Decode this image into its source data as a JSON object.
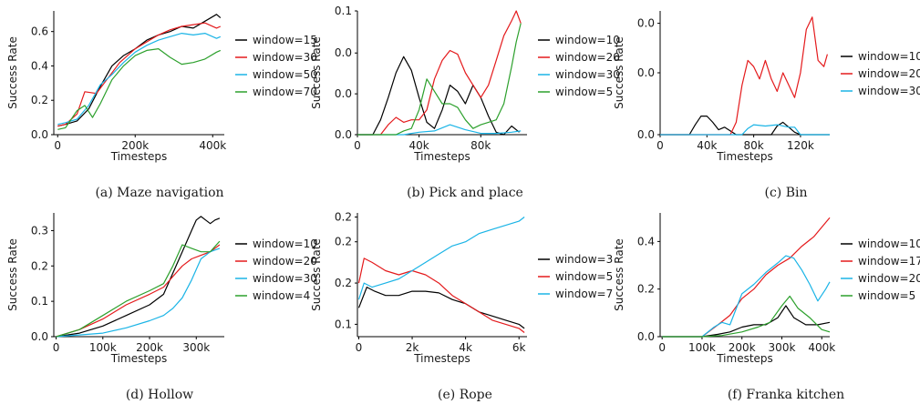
{
  "chart_data": [
    {
      "type": "line",
      "caption": "(a) Maze navigation",
      "xlabel": "Timesteps",
      "ylabel": "Success Rate",
      "xlim": [
        -10000,
        430000
      ],
      "ylim": [
        0,
        0.72
      ],
      "xticks": [
        0,
        200000,
        400000
      ],
      "xtick_labels": [
        "0",
        "200k",
        "400k"
      ],
      "yticks": [
        0,
        0.2,
        0.4,
        0.6
      ],
      "ytick_labels": [
        "0.0",
        "0.2",
        "0.4",
        "0.6"
      ],
      "legend_position": "right",
      "series": [
        {
          "name": "window=15",
          "color": "#000000",
          "x": [
            0,
            20000,
            50000,
            80000,
            110000,
            140000,
            170000,
            200000,
            230000,
            260000,
            290000,
            320000,
            350000,
            380000,
            410000,
            420000
          ],
          "y": [
            0.05,
            0.06,
            0.08,
            0.15,
            0.28,
            0.4,
            0.46,
            0.5,
            0.55,
            0.58,
            0.6,
            0.63,
            0.62,
            0.66,
            0.7,
            0.68
          ]
        },
        {
          "name": "window=30",
          "color": "#e41a1c",
          "x": [
            0,
            20000,
            50000,
            70000,
            100000,
            130000,
            160000,
            200000,
            230000,
            260000,
            290000,
            320000,
            350000,
            380000,
            410000,
            420000
          ],
          "y": [
            0.05,
            0.06,
            0.12,
            0.25,
            0.24,
            0.33,
            0.42,
            0.5,
            0.54,
            0.58,
            0.61,
            0.63,
            0.64,
            0.65,
            0.62,
            0.63
          ]
        },
        {
          "name": "window=50",
          "color": "#1ab4e6",
          "x": [
            0,
            20000,
            50000,
            80000,
            110000,
            140000,
            170000,
            200000,
            230000,
            260000,
            290000,
            320000,
            350000,
            380000,
            410000,
            420000
          ],
          "y": [
            0.06,
            0.07,
            0.09,
            0.17,
            0.29,
            0.35,
            0.42,
            0.48,
            0.52,
            0.55,
            0.57,
            0.59,
            0.58,
            0.59,
            0.56,
            0.57
          ]
        },
        {
          "name": "window=70",
          "color": "#2ca02c",
          "x": [
            0,
            20000,
            50000,
            70000,
            90000,
            110000,
            140000,
            170000,
            200000,
            230000,
            260000,
            290000,
            320000,
            350000,
            380000,
            410000,
            420000
          ],
          "y": [
            0.03,
            0.04,
            0.14,
            0.17,
            0.1,
            0.18,
            0.32,
            0.4,
            0.46,
            0.49,
            0.5,
            0.45,
            0.41,
            0.42,
            0.44,
            0.48,
            0.49
          ]
        }
      ]
    },
    {
      "type": "line",
      "caption": "(b) Pick and place",
      "xlabel": "Timesteps",
      "ylabel": "Success Rate",
      "xlim": [
        0,
        110000
      ],
      "ylim": [
        0,
        0.1
      ],
      "xticks": [
        0,
        40000,
        80000
      ],
      "xtick_labels": [
        "0",
        "40k",
        "80k"
      ],
      "yticks": [
        0,
        0.033,
        0.066,
        0.1
      ],
      "ytick_labels": [
        "0.0",
        "0.0",
        "0.0",
        "0.1"
      ],
      "legend_position": "right",
      "series": [
        {
          "name": "window=10",
          "color": "#000000",
          "x": [
            0,
            10000,
            15000,
            20000,
            25000,
            30000,
            35000,
            40000,
            45000,
            50000,
            55000,
            60000,
            65000,
            70000,
            75000,
            80000,
            85000,
            90000,
            95000,
            100000,
            105000
          ],
          "y": [
            0,
            0.0,
            0.012,
            0.03,
            0.05,
            0.063,
            0.052,
            0.03,
            0.01,
            0.005,
            0.02,
            0.04,
            0.035,
            0.025,
            0.04,
            0.03,
            0.015,
            0.002,
            0,
            0.007,
            0.002
          ]
        },
        {
          "name": "window=20",
          "color": "#e41a1c",
          "x": [
            0,
            15000,
            20000,
            25000,
            30000,
            35000,
            40000,
            45000,
            50000,
            55000,
            60000,
            65000,
            70000,
            75000,
            80000,
            85000,
            90000,
            95000,
            100000,
            103000,
            106000
          ],
          "y": [
            0,
            0,
            0.008,
            0.014,
            0.01,
            0.012,
            0.012,
            0.02,
            0.045,
            0.06,
            0.068,
            0.065,
            0.05,
            0.04,
            0.03,
            0.04,
            0.06,
            0.08,
            0.092,
            0.1,
            0.09
          ]
        },
        {
          "name": "window=30",
          "color": "#1ab4e6",
          "x": [
            0,
            30000,
            40000,
            50000,
            60000,
            70000,
            80000,
            90000,
            100000,
            106000
          ],
          "y": [
            0,
            0,
            0.002,
            0.003,
            0.008,
            0.004,
            0.001,
            0.001,
            0.002,
            0.003
          ]
        },
        {
          "name": "window=5",
          "color": "#2ca02c",
          "x": [
            0,
            25000,
            30000,
            35000,
            40000,
            45000,
            50000,
            55000,
            60000,
            65000,
            70000,
            75000,
            80000,
            85000,
            90000,
            95000,
            100000,
            103000,
            106000
          ],
          "y": [
            0,
            0,
            0.003,
            0.005,
            0.02,
            0.045,
            0.035,
            0.025,
            0.025,
            0.022,
            0.012,
            0.005,
            0.008,
            0.01,
            0.012,
            0.025,
            0.055,
            0.075,
            0.09
          ]
        }
      ]
    },
    {
      "type": "line",
      "caption": "(c) Bin",
      "xlabel": "Timesteps",
      "ylabel": "Success Rate",
      "xlim": [
        0,
        145000
      ],
      "ylim": [
        0,
        0.1
      ],
      "xticks": [
        0,
        40000,
        80000,
        120000
      ],
      "xtick_labels": [
        "0",
        "40k",
        "80k",
        "120k"
      ],
      "yticks": [
        0,
        0.05,
        0.09
      ],
      "ytick_labels": [
        "0.0",
        "0.0",
        "0.0"
      ],
      "legend_position": "right",
      "series": [
        {
          "name": "window=10",
          "color": "#000000",
          "x": [
            0,
            25000,
            30000,
            35000,
            40000,
            45000,
            50000,
            55000,
            60000,
            65000,
            95000,
            100000,
            105000,
            110000,
            115000,
            120000,
            145000
          ],
          "y": [
            0,
            0,
            0.008,
            0.015,
            0.015,
            0.01,
            0.004,
            0.006,
            0.003,
            0,
            0,
            0.007,
            0.01,
            0.006,
            0.002,
            0,
            0
          ]
        },
        {
          "name": "window=20",
          "color": "#e41a1c",
          "x": [
            0,
            60000,
            65000,
            70000,
            75000,
            80000,
            85000,
            90000,
            95000,
            100000,
            105000,
            110000,
            115000,
            120000,
            125000,
            130000,
            135000,
            140000,
            143000
          ],
          "y": [
            0,
            0,
            0.01,
            0.04,
            0.06,
            0.055,
            0.045,
            0.06,
            0.045,
            0.035,
            0.05,
            0.04,
            0.03,
            0.05,
            0.085,
            0.095,
            0.06,
            0.055,
            0.065
          ]
        },
        {
          "name": "window=30",
          "color": "#1ab4e6",
          "x": [
            0,
            70000,
            75000,
            80000,
            90000,
            100000,
            110000,
            115000,
            120000,
            145000
          ],
          "y": [
            0,
            0,
            0.005,
            0.008,
            0.007,
            0.008,
            0.006,
            0.006,
            0,
            0
          ]
        }
      ]
    },
    {
      "type": "line",
      "caption": "(d) Hollow",
      "xlabel": "Timesteps",
      "ylabel": "Success Rate",
      "xlim": [
        -5000,
        360000
      ],
      "ylim": [
        0,
        0.35
      ],
      "xticks": [
        0,
        100000,
        200000,
        300000
      ],
      "xtick_labels": [
        "0",
        "100k",
        "200k",
        "300k"
      ],
      "yticks": [
        0,
        0.1,
        0.2,
        0.3
      ],
      "ytick_labels": [
        "0.0",
        "0.1",
        "0.2",
        "0.3"
      ],
      "legend_position": "right",
      "series": [
        {
          "name": "window=10",
          "color": "#000000",
          "x": [
            0,
            50000,
            100000,
            150000,
            200000,
            230000,
            250000,
            270000,
            290000,
            300000,
            310000,
            320000,
            330000,
            340000,
            350000
          ],
          "y": [
            0,
            0.01,
            0.03,
            0.06,
            0.09,
            0.12,
            0.18,
            0.24,
            0.3,
            0.33,
            0.34,
            0.33,
            0.32,
            0.33,
            0.335
          ]
        },
        {
          "name": "window=20",
          "color": "#e41a1c",
          "x": [
            0,
            50000,
            100000,
            150000,
            200000,
            230000,
            250000,
            270000,
            290000,
            310000,
            330000,
            350000
          ],
          "y": [
            0,
            0.02,
            0.05,
            0.09,
            0.12,
            0.14,
            0.17,
            0.2,
            0.22,
            0.23,
            0.24,
            0.26
          ]
        },
        {
          "name": "window=30",
          "color": "#1ab4e6",
          "x": [
            0,
            50000,
            100000,
            150000,
            200000,
            230000,
            250000,
            270000,
            290000,
            310000,
            330000,
            350000
          ],
          "y": [
            0,
            0.005,
            0.01,
            0.025,
            0.045,
            0.06,
            0.08,
            0.11,
            0.16,
            0.22,
            0.24,
            0.25
          ]
        },
        {
          "name": "window=4",
          "color": "#2ca02c",
          "x": [
            0,
            50000,
            100000,
            150000,
            200000,
            230000,
            250000,
            270000,
            290000,
            310000,
            330000,
            350000
          ],
          "y": [
            0,
            0.02,
            0.06,
            0.1,
            0.13,
            0.15,
            0.2,
            0.26,
            0.25,
            0.24,
            0.24,
            0.27
          ]
        }
      ]
    },
    {
      "type": "line",
      "caption": "(e) Rope",
      "xlabel": "Timesteps",
      "ylabel": "Success Rate",
      "xlim": [
        -50,
        6300
      ],
      "ylim": [
        0.085,
        0.235
      ],
      "xticks": [
        0,
        2000,
        4000,
        6000
      ],
      "xtick_labels": [
        "0",
        "2k",
        "4k",
        "6k"
      ],
      "yticks": [
        0.1,
        0.15,
        0.2,
        0.23
      ],
      "ytick_labels": [
        "0.1",
        "0.2",
        "0.2",
        "0.2"
      ],
      "legend_position": "right",
      "series": [
        {
          "name": "window=3",
          "color": "#000000",
          "x": [
            0,
            300,
            600,
            1000,
            1500,
            2000,
            2500,
            3000,
            3500,
            4000,
            4500,
            5000,
            5500,
            6000,
            6200
          ],
          "y": [
            0.12,
            0.145,
            0.14,
            0.135,
            0.135,
            0.14,
            0.14,
            0.138,
            0.13,
            0.125,
            0.115,
            0.11,
            0.105,
            0.1,
            0.095
          ]
        },
        {
          "name": "window=5",
          "color": "#e41a1c",
          "x": [
            0,
            200,
            500,
            1000,
            1500,
            2000,
            2500,
            3000,
            3500,
            4000,
            4500,
            5000,
            5500,
            6000,
            6200
          ],
          "y": [
            0.15,
            0.18,
            0.175,
            0.165,
            0.16,
            0.165,
            0.16,
            0.15,
            0.135,
            0.125,
            0.115,
            0.105,
            0.1,
            0.095,
            0.09
          ]
        },
        {
          "name": "window=7",
          "color": "#1ab4e6",
          "x": [
            0,
            200,
            500,
            1000,
            1500,
            2000,
            2500,
            3000,
            3500,
            4000,
            4500,
            5000,
            5500,
            6000,
            6200
          ],
          "y": [
            0.13,
            0.15,
            0.145,
            0.15,
            0.155,
            0.165,
            0.175,
            0.185,
            0.195,
            0.2,
            0.21,
            0.215,
            0.22,
            0.225,
            0.23
          ]
        }
      ]
    },
    {
      "type": "line",
      "caption": "(f) Franka kitchen",
      "xlabel": "Timesteps",
      "ylabel": "Success Rate",
      "xlim": [
        -5000,
        420000
      ],
      "ylim": [
        0,
        0.52
      ],
      "xticks": [
        0,
        100000,
        200000,
        300000,
        400000
      ],
      "xtick_labels": [
        "0",
        "100k",
        "200k",
        "300k",
        "400k"
      ],
      "yticks": [
        0,
        0.2,
        0.4
      ],
      "ytick_labels": [
        "0.0",
        "0.2",
        "0.4"
      ],
      "legend_position": "right",
      "series": [
        {
          "name": "window=10",
          "color": "#000000",
          "x": [
            0,
            100000,
            140000,
            170000,
            200000,
            230000,
            260000,
            290000,
            310000,
            330000,
            360000,
            390000,
            420000
          ],
          "y": [
            0,
            0,
            0.01,
            0.02,
            0.04,
            0.05,
            0.05,
            0.08,
            0.13,
            0.08,
            0.05,
            0.05,
            0.06
          ]
        },
        {
          "name": "window=17",
          "color": "#e41a1c",
          "x": [
            0,
            100000,
            140000,
            170000,
            200000,
            230000,
            260000,
            290000,
            320000,
            350000,
            380000,
            410000,
            420000
          ],
          "y": [
            0,
            0,
            0.05,
            0.09,
            0.16,
            0.2,
            0.26,
            0.3,
            0.33,
            0.38,
            0.42,
            0.48,
            0.5
          ]
        },
        {
          "name": "window=20",
          "color": "#1ab4e6",
          "x": [
            0,
            100000,
            130000,
            150000,
            170000,
            200000,
            230000,
            260000,
            290000,
            310000,
            330000,
            350000,
            370000,
            390000,
            410000,
            420000
          ],
          "y": [
            0,
            0,
            0.04,
            0.06,
            0.05,
            0.18,
            0.22,
            0.27,
            0.31,
            0.34,
            0.33,
            0.28,
            0.22,
            0.15,
            0.2,
            0.23
          ]
        },
        {
          "name": "window=5",
          "color": "#2ca02c",
          "x": [
            0,
            100000,
            150000,
            200000,
            240000,
            270000,
            300000,
            320000,
            340000,
            370000,
            400000,
            420000
          ],
          "y": [
            0,
            0,
            0.005,
            0.02,
            0.04,
            0.06,
            0.13,
            0.17,
            0.12,
            0.08,
            0.03,
            0.02
          ]
        }
      ]
    }
  ]
}
